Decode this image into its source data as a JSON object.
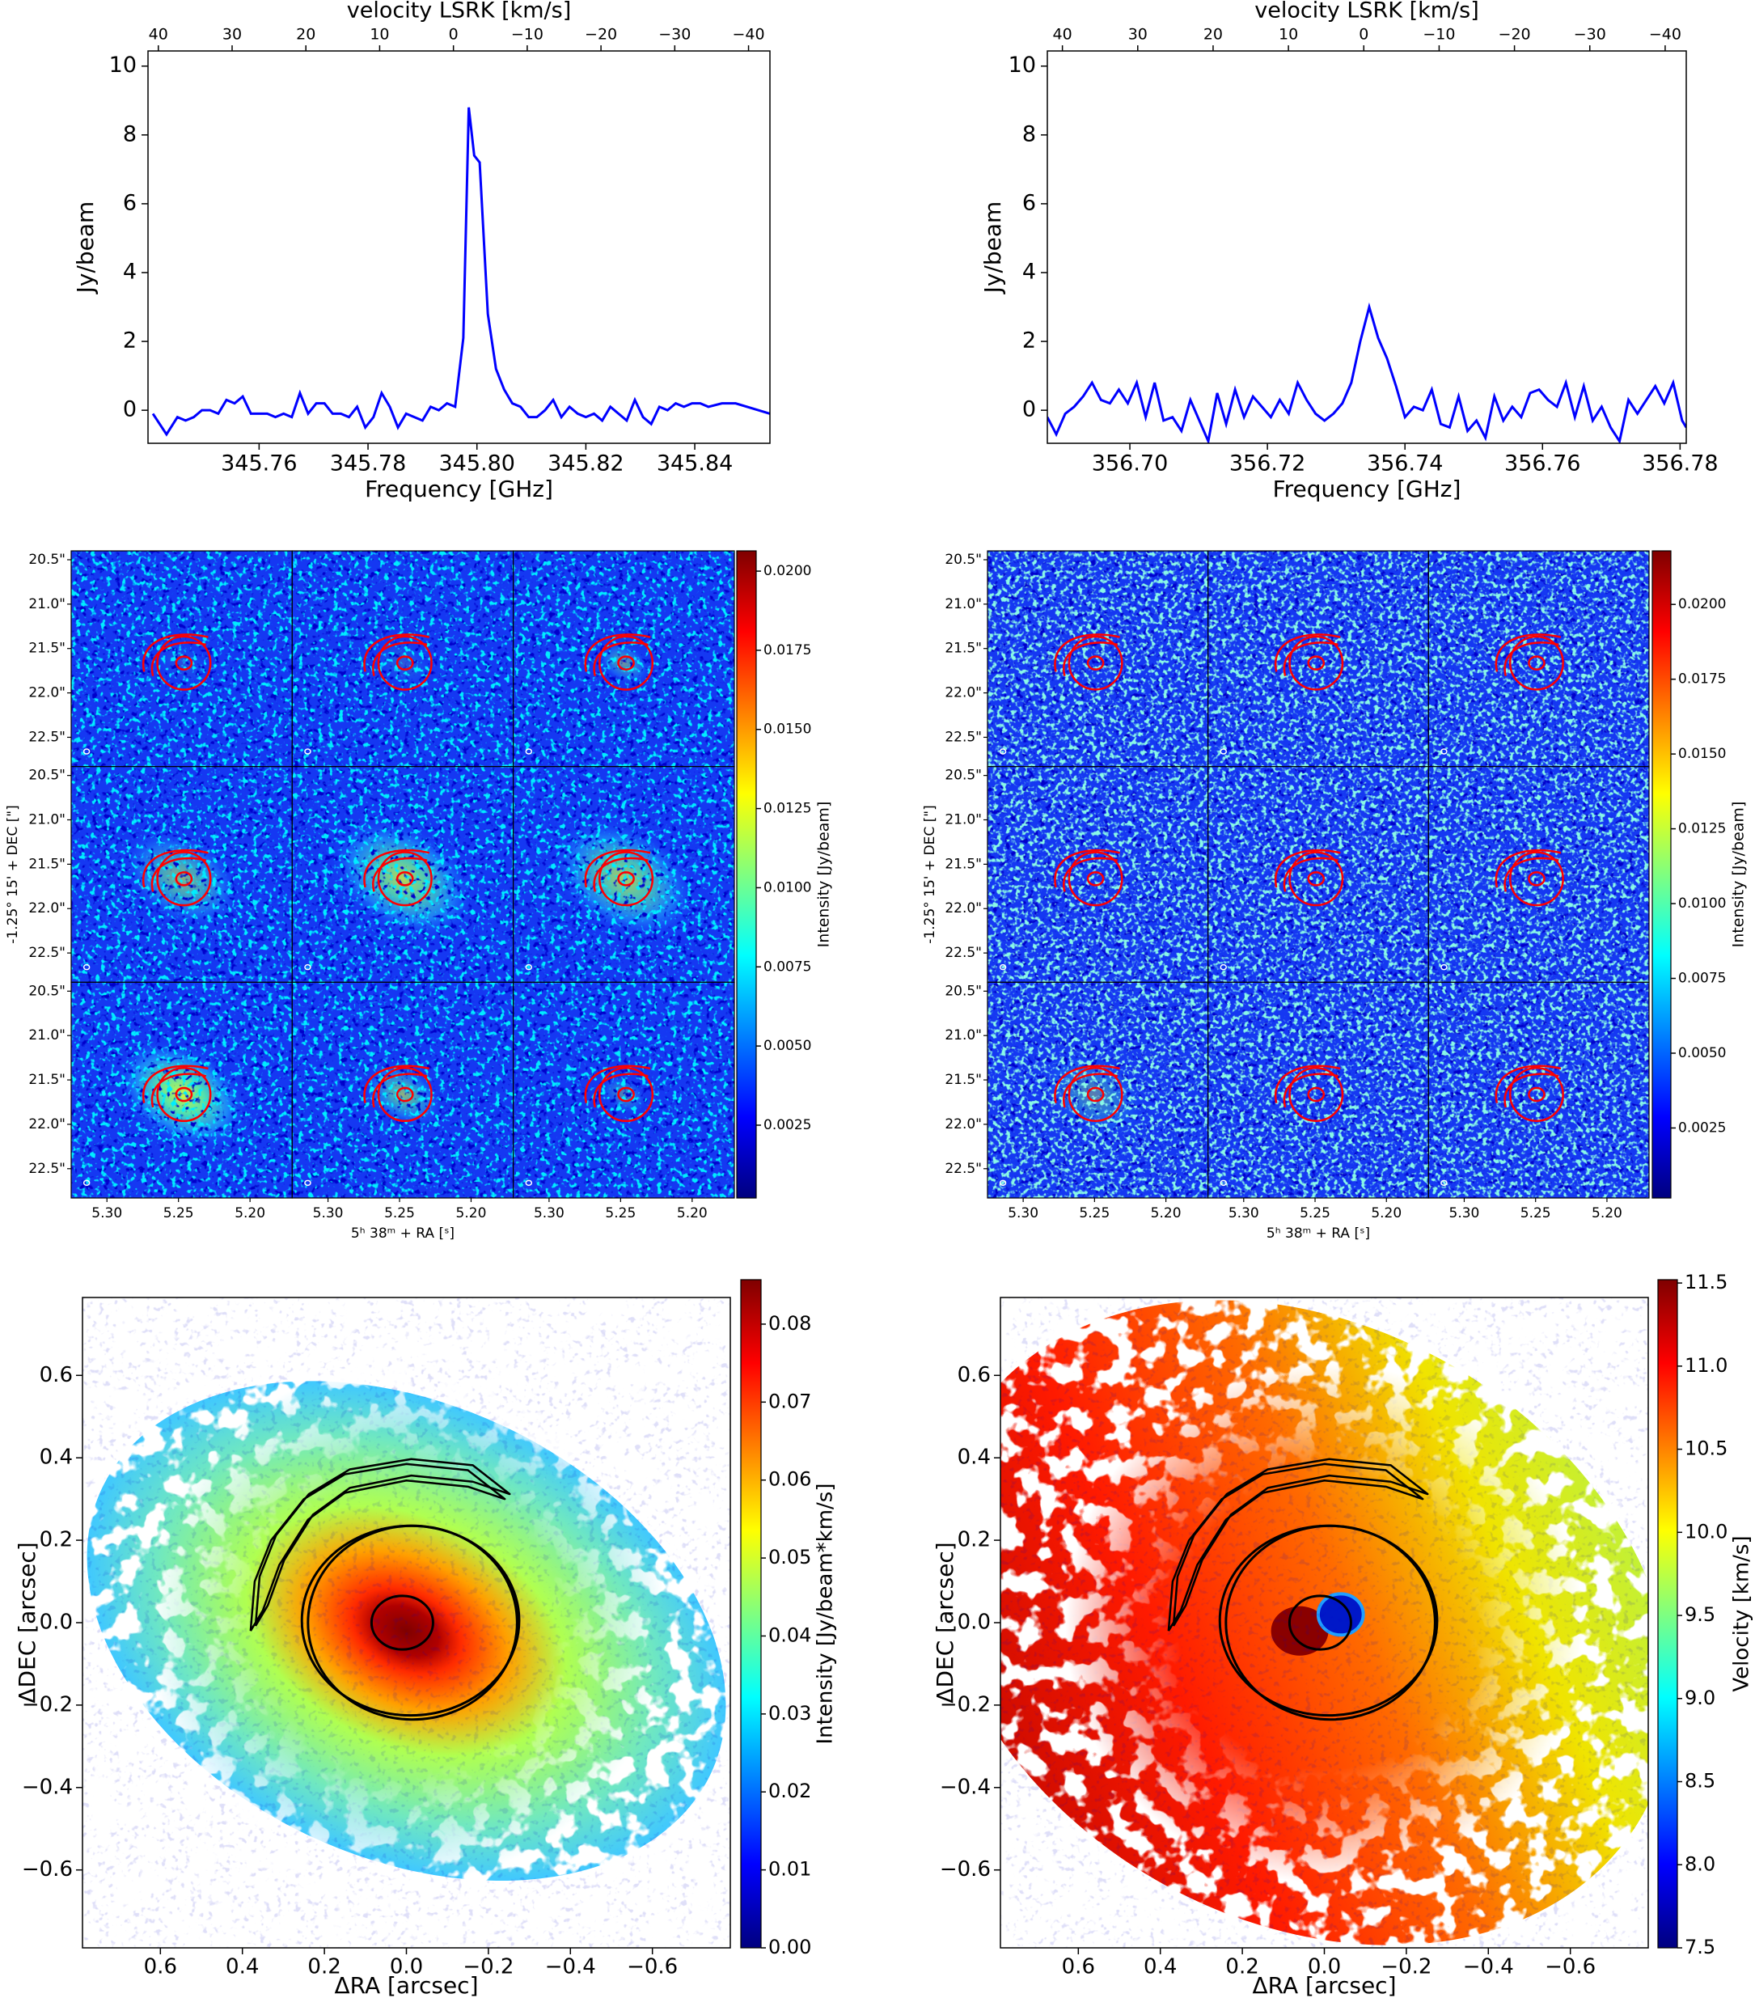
{
  "chart_data": [
    {
      "type": "line",
      "xlabel": "Frequency [GHz]",
      "ylabel": "Jy/beam",
      "x2label": "velocity LSRK [km/s]",
      "color": "#0000ff",
      "x": [
        345.7405,
        345.743,
        345.745,
        345.7465,
        345.748,
        345.7495,
        345.751,
        345.7525,
        345.754,
        345.7555,
        345.757,
        345.7585,
        345.76,
        345.7615,
        345.763,
        345.7645,
        345.766,
        345.7675,
        345.769,
        345.7705,
        345.772,
        345.7735,
        345.775,
        345.7765,
        345.778,
        345.7795,
        345.781,
        345.7825,
        345.784,
        345.7855,
        345.787,
        345.7885,
        345.79,
        345.7915,
        345.793,
        345.7945,
        345.796,
        345.7975,
        345.7985,
        345.7995,
        345.8005,
        345.802,
        345.8035,
        345.805,
        345.8065,
        345.808,
        345.8095,
        345.811,
        345.8125,
        345.814,
        345.8155,
        345.817,
        345.8185,
        345.82,
        345.8215,
        345.823,
        345.8245,
        345.826,
        345.8275,
        345.829,
        345.8305,
        345.832,
        345.8335,
        345.835,
        345.8365,
        345.838,
        345.8395,
        345.841,
        345.8425,
        345.845,
        345.8475,
        345.8538
      ],
      "values": [
        -0.1,
        -0.7,
        -0.2,
        -0.3,
        -0.2,
        0.0,
        0.0,
        -0.1,
        0.3,
        0.2,
        0.4,
        -0.1,
        -0.1,
        -0.1,
        -0.2,
        -0.1,
        -0.2,
        0.5,
        -0.1,
        0.2,
        0.2,
        -0.1,
        -0.1,
        -0.2,
        0.1,
        -0.5,
        -0.2,
        0.5,
        0.1,
        -0.5,
        -0.1,
        -0.2,
        -0.3,
        0.1,
        0.0,
        0.2,
        0.1,
        2.1,
        8.8,
        7.4,
        7.2,
        2.8,
        1.2,
        0.6,
        0.2,
        0.1,
        -0.2,
        -0.2,
        0.0,
        0.3,
        -0.2,
        0.1,
        -0.1,
        -0.2,
        -0.1,
        -0.3,
        0.1,
        -0.1,
        -0.3,
        0.3,
        -0.2,
        -0.4,
        0.1,
        0.0,
        0.2,
        0.1,
        0.2,
        0.2,
        0.1,
        0.2,
        0.2,
        -0.1
      ],
      "xlim": [
        345.7396,
        345.8538
      ],
      "xticks": [
        345.76,
        345.78,
        {
          "value": 345.8,
          "label": "345.80"
        },
        345.82,
        345.84
      ],
      "ylim": [
        -0.96,
        10.44
      ],
      "yticks": [
        0,
        2,
        4,
        6,
        8,
        10
      ],
      "x2lim": [
        41.4,
        -42.9
      ],
      "x2ticks": [
        40,
        30,
        20,
        10,
        0,
        {
          "value": -10,
          "label": "−10"
        },
        {
          "value": -20,
          "label": "−20"
        },
        {
          "value": -30,
          "label": "−30"
        },
        {
          "value": -40,
          "label": "−40"
        }
      ]
    },
    {
      "type": "line",
      "xlabel": "Frequency [GHz]",
      "ylabel": "Jy/beam",
      "x2label": "velocity LSRK [km/s]",
      "color": "#0000ff",
      "x": [
        356.688,
        356.6893,
        356.6906,
        356.6919,
        356.6932,
        356.6945,
        356.6958,
        356.6971,
        356.6984,
        356.6997,
        356.701,
        356.7023,
        356.7036,
        356.7049,
        356.7062,
        356.7075,
        356.7088,
        356.7101,
        356.7114,
        356.7127,
        356.714,
        356.7153,
        356.7166,
        356.7179,
        356.7192,
        356.7205,
        356.7218,
        356.7231,
        356.7244,
        356.7257,
        356.727,
        356.7283,
        356.7296,
        356.7309,
        356.7322,
        356.7335,
        356.7348,
        356.7361,
        356.7374,
        356.7387,
        356.74,
        356.7413,
        356.7426,
        356.7439,
        356.7452,
        356.7465,
        356.7478,
        356.7491,
        356.7504,
        356.7517,
        356.753,
        356.7543,
        356.7556,
        356.7569,
        356.7582,
        356.7595,
        356.7608,
        356.7621,
        356.7634,
        356.7647,
        356.766,
        356.7673,
        356.7686,
        356.7699,
        356.7712,
        356.7725,
        356.7738,
        356.7751,
        356.7764,
        356.7777,
        356.779,
        356.7803,
        356.7809
      ],
      "values": [
        -0.2,
        -0.7,
        -0.1,
        0.1,
        0.4,
        0.8,
        0.3,
        0.2,
        0.6,
        0.2,
        0.8,
        -0.2,
        0.8,
        -0.3,
        -0.2,
        -0.6,
        0.3,
        -0.3,
        -0.9,
        0.5,
        -0.4,
        0.6,
        -0.2,
        0.4,
        0.1,
        -0.2,
        0.3,
        -0.1,
        0.8,
        0.3,
        -0.1,
        -0.3,
        -0.1,
        0.2,
        0.8,
        2.0,
        3.0,
        2.1,
        1.5,
        0.7,
        -0.2,
        0.1,
        0.0,
        0.6,
        -0.4,
        -0.5,
        0.4,
        -0.6,
        -0.3,
        -0.8,
        0.4,
        -0.3,
        0.1,
        -0.2,
        0.5,
        0.6,
        0.3,
        0.1,
        0.8,
        -0.2,
        0.7,
        -0.3,
        0.1,
        -0.5,
        -0.9,
        0.3,
        -0.1,
        0.3,
        0.7,
        0.2,
        0.8,
        -0.3,
        -0.5
      ],
      "xlim": [
        356.688,
        356.7809
      ],
      "xticks": [
        {
          "value": 356.7,
          "label": "356.70"
        },
        356.72,
        356.74,
        356.76,
        356.78
      ],
      "ylim": [
        -0.96,
        10.44
      ],
      "yticks": [
        0,
        2,
        4,
        6,
        8,
        10
      ],
      "x2lim": [
        42.0,
        -42.8
      ],
      "x2ticks": [
        40,
        30,
        20,
        10,
        0,
        {
          "value": -10,
          "label": "−10"
        },
        {
          "value": -20,
          "label": "−20"
        },
        {
          "value": -30,
          "label": "−30"
        },
        {
          "value": -40,
          "label": "−40"
        }
      ]
    },
    {
      "type": "channel_maps",
      "xlabel": "5ʰ 38ᵐ + RA [ˢ]",
      "ylabel": "-1.25° 15' + DEC [\"]",
      "colorbar_label": "Intensity [Jy/beam]",
      "colormap": "jet",
      "contour_color": "red",
      "xlim": [
        5.325,
        5.1705
      ],
      "xticks": [
        {
          "value": 5.3,
          "label": "5.30"
        },
        5.25,
        {
          "value": 5.2,
          "label": "5.20"
        }
      ],
      "ylim": [
        20.4,
        22.83
      ],
      "yticks": [
        {
          "value": 20.5,
          "label": "20.5\""
        },
        {
          "value": 21.0,
          "label": "21.0\""
        },
        {
          "value": 21.5,
          "label": "21.5\""
        },
        {
          "value": 22.0,
          "label": "22.0\""
        },
        {
          "value": 22.5,
          "label": "22.5\""
        }
      ],
      "clim": [
        0.0002,
        0.02064
      ],
      "cticks": [
        0.0025,
        {
          "value": 0.005,
          "label": "0.0050"
        },
        0.0075,
        {
          "value": 0.01,
          "label": "0.0100"
        },
        0.0125,
        {
          "value": 0.015,
          "label": "0.0150"
        },
        0.0175,
        {
          "value": 0.02,
          "label": "0.0200"
        }
      ]
    },
    {
      "type": "channel_maps",
      "xlabel": "5ʰ 38ᵐ + RA [ˢ]",
      "ylabel": "-1.25° 15' + DEC [\"]",
      "colorbar_label": "Intensity [Jy/beam]",
      "colormap": "jet",
      "contour_color": "red",
      "xlim": [
        5.325,
        5.1705
      ],
      "xticks": [
        {
          "value": 5.3,
          "label": "5.30"
        },
        5.25,
        {
          "value": 5.2,
          "label": "5.20"
        }
      ],
      "ylim": [
        20.4,
        22.83
      ],
      "yticks": [
        {
          "value": 20.5,
          "label": "20.5\""
        },
        {
          "value": 21.0,
          "label": "21.0\""
        },
        {
          "value": 21.5,
          "label": "21.5\""
        },
        {
          "value": 22.0,
          "label": "22.0\""
        },
        {
          "value": 22.5,
          "label": "22.5\""
        }
      ],
      "clim": [
        0.00016,
        0.02179
      ],
      "cticks": [
        0.0025,
        {
          "value": 0.005,
          "label": "0.0050"
        },
        0.0075,
        {
          "value": 0.01,
          "label": "0.0100"
        },
        0.0125,
        {
          "value": 0.015,
          "label": "0.0150"
        },
        0.0175,
        {
          "value": 0.02,
          "label": "0.0200"
        }
      ]
    },
    {
      "type": "moment_map",
      "xlabel": "ΔRA [arcsec]",
      "ylabel": "ΔDEC [arcsec]",
      "colorbar_label": "Intensity [Jy/beam*km/s]",
      "colormap": "jet",
      "contour_color": "black",
      "xlim": [
        0.79,
        -0.79
      ],
      "xticks": [
        0.6,
        0.4,
        0.2,
        {
          "value": 0,
          "label": "0.0"
        },
        {
          "value": -0.2,
          "label": "−0.2"
        },
        {
          "value": -0.4,
          "label": "−0.4"
        },
        {
          "value": -0.6,
          "label": "−0.6"
        }
      ],
      "ylim": [
        -0.789,
        0.789
      ],
      "yticks": [
        {
          "value": -0.6,
          "label": "−0.6"
        },
        {
          "value": -0.4,
          "label": "−0.4"
        },
        {
          "value": -0.2,
          "label": "−0.2"
        },
        {
          "value": 0,
          "label": "0.0"
        },
        0.2,
        0.4,
        0.6
      ],
      "clim": [
        0,
        0.0857
      ],
      "cticks": [
        {
          "value": 0,
          "label": "0.00"
        },
        0.01,
        0.02,
        0.03,
        0.04,
        0.05,
        0.06,
        0.07,
        0.08
      ]
    },
    {
      "type": "moment_map",
      "xlabel": "ΔRA [arcsec]",
      "ylabel": "ΔDEC [arcsec]",
      "colorbar_label": "Velocity [km/s]",
      "colormap": "jet",
      "contour_color": "black",
      "xlim": [
        0.79,
        -0.79
      ],
      "xticks": [
        0.6,
        0.4,
        0.2,
        {
          "value": 0,
          "label": "0.0"
        },
        {
          "value": -0.2,
          "label": "−0.2"
        },
        {
          "value": -0.4,
          "label": "−0.4"
        },
        {
          "value": -0.6,
          "label": "−0.6"
        }
      ],
      "ylim": [
        -0.789,
        0.789
      ],
      "yticks": [
        {
          "value": -0.6,
          "label": "−0.6"
        },
        {
          "value": -0.4,
          "label": "−0.4"
        },
        {
          "value": -0.2,
          "label": "−0.2"
        },
        {
          "value": 0,
          "label": "0.0"
        },
        0.2,
        0.4,
        0.6
      ],
      "clim": [
        7.5,
        11.52
      ],
      "cticks": [
        7.5,
        {
          "value": 8,
          "label": "8.0"
        },
        8.5,
        {
          "value": 9,
          "label": "9.0"
        },
        9.5,
        {
          "value": 10,
          "label": "10.0"
        },
        10.5,
        {
          "value": 11,
          "label": "11.0"
        },
        11.5
      ]
    }
  ]
}
